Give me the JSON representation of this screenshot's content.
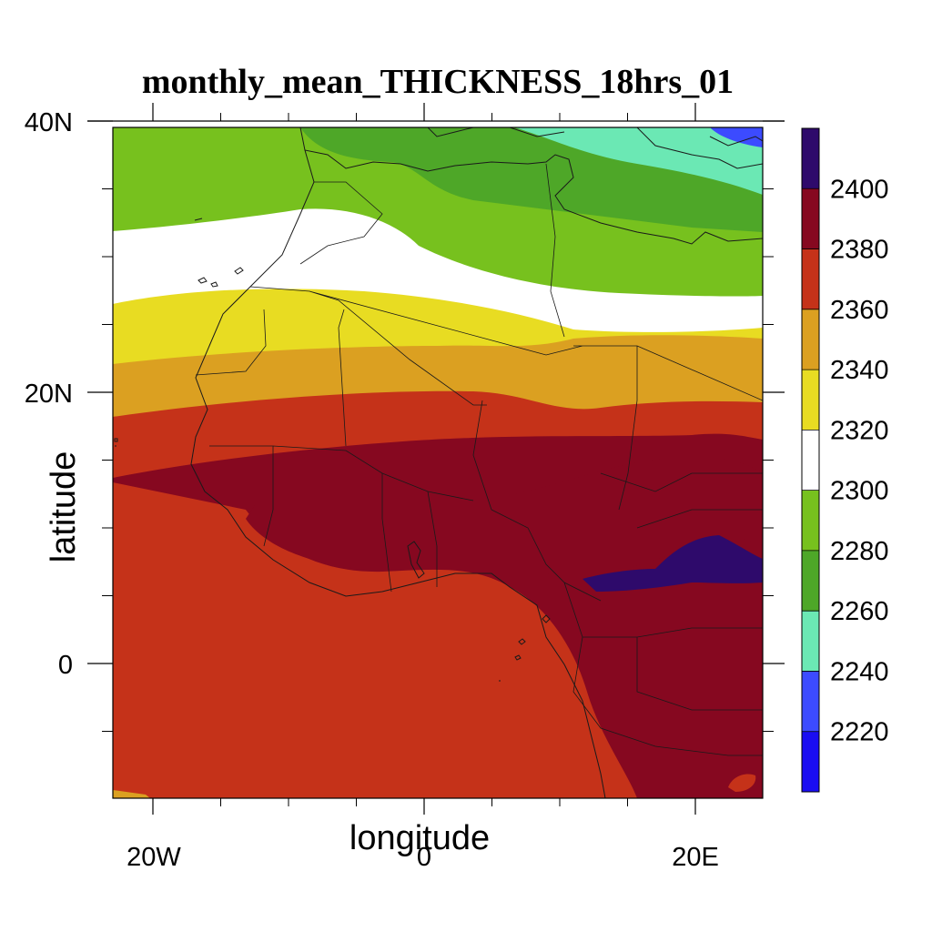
{
  "title": "monthly_mean_THICKNESS_18hrs_01",
  "axes": {
    "xlabel": "longitude",
    "ylabel": "latitude",
    "x_ticks": [
      {
        "value": -20,
        "label": "20W"
      },
      {
        "value": 0,
        "label": "0"
      },
      {
        "value": 20,
        "label": "20E"
      }
    ],
    "y_ticks": [
      {
        "value": 40,
        "label": "40N"
      },
      {
        "value": 20,
        "label": "20N"
      },
      {
        "value": 0,
        "label": "0"
      }
    ]
  },
  "chart_data": {
    "type": "heatmap",
    "title": "monthly_mean_THICKNESS_18hrs_01",
    "xlabel": "longitude",
    "ylabel": "latitude",
    "xlim": [
      -23,
      25
    ],
    "ylim": [
      -10,
      40
    ],
    "contour_levels": [
      2220,
      2240,
      2260,
      2280,
      2300,
      2320,
      2340,
      2360,
      2380,
      2400
    ],
    "level_colors": [
      "#1a0df2",
      "#3c4bff",
      "#6be8b4",
      "#4ea728",
      "#77c11e",
      "#ffffff",
      "#e8dc22",
      "#dba021",
      "#c53219",
      "#860820",
      "#2e0a6b"
    ],
    "colorbar_labels": [
      "2220",
      "2240",
      "2260",
      "2280",
      "2300",
      "2320",
      "2340",
      "2360",
      "2380",
      "2400"
    ],
    "colorbar_position": "right",
    "grid": false,
    "coastlines": true,
    "country_borders": true
  }
}
